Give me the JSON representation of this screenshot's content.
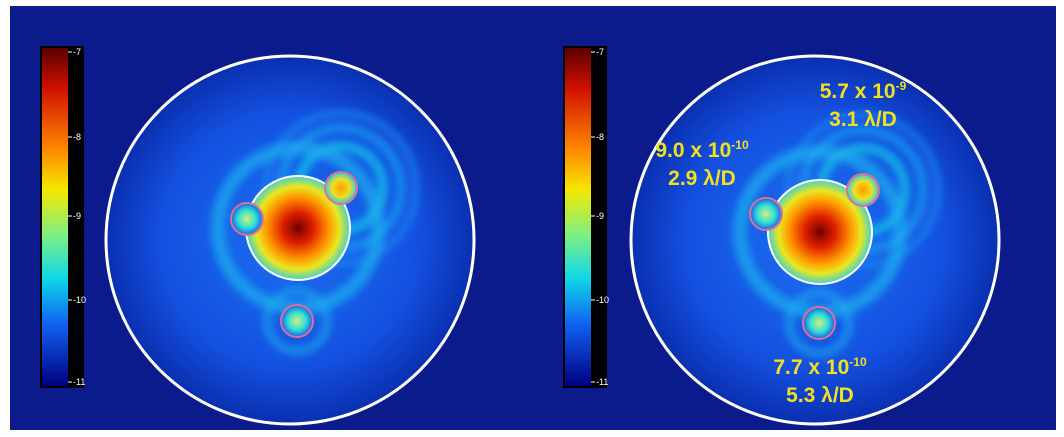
{
  "panels": [
    {
      "colorbar": {
        "ticks": [
          -7,
          -8,
          -9,
          -10,
          -11
        ]
      }
    },
    {
      "colorbar": {
        "ticks": [
          -7,
          -8,
          -9,
          -10,
          -11
        ]
      },
      "annotations": [
        {
          "contrast": "5.7 x 10",
          "exponent": "-9",
          "separation": "3.1 λ/D"
        },
        {
          "contrast": "9.0 x 10",
          "exponent": "-10",
          "separation": "2.9 λ/D"
        },
        {
          "contrast": "7.7 x 10",
          "exponent": "-10",
          "separation": "5.3 λ/D"
        }
      ]
    }
  ]
}
